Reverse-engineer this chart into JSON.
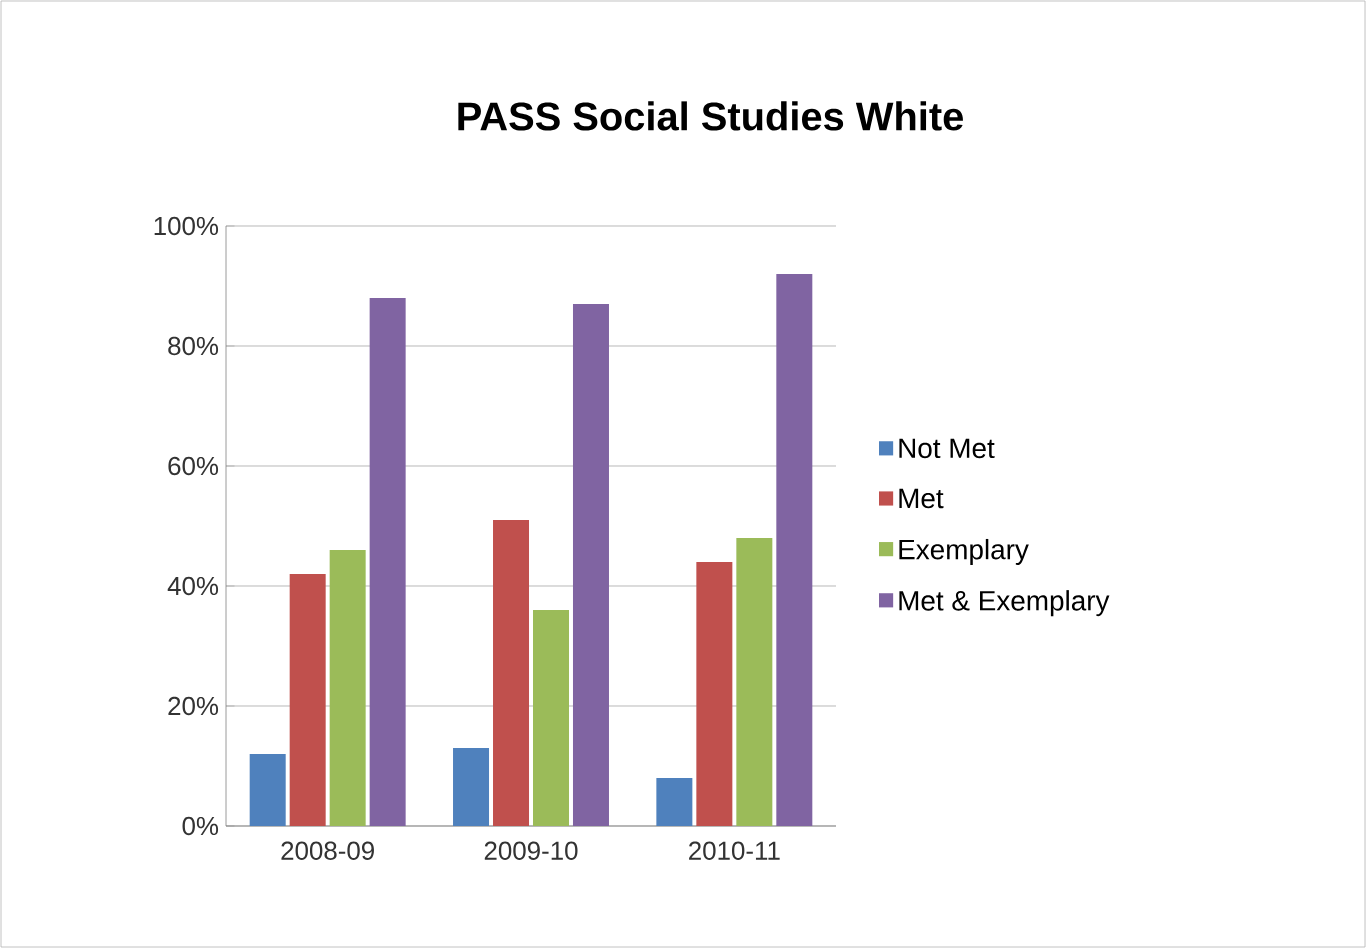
{
  "chart_data": {
    "type": "bar",
    "title": "PASS Social Studies White",
    "categories": [
      "2008-09",
      "2009-10",
      "2010-11"
    ],
    "series": [
      {
        "name": "Not Met",
        "color": "#4f81bd",
        "values": [
          12,
          13,
          8
        ]
      },
      {
        "name": "Met",
        "color": "#c0504d",
        "values": [
          42,
          51,
          44
        ]
      },
      {
        "name": "Exemplary",
        "color": "#9bbb59",
        "values": [
          46,
          36,
          48
        ]
      },
      {
        "name": "Met & Exemplary",
        "color": "#8064a2",
        "values": [
          88,
          87,
          92
        ]
      }
    ],
    "ylim": [
      0,
      100
    ],
    "yticks": [
      {
        "value": 0,
        "label": "0%"
      },
      {
        "value": 20,
        "label": "20%"
      },
      {
        "value": 40,
        "label": "40%"
      },
      {
        "value": 60,
        "label": "60%"
      },
      {
        "value": 80,
        "label": "80%"
      },
      {
        "value": 100,
        "label": "100%"
      }
    ],
    "grid": "y",
    "legend": "right"
  }
}
